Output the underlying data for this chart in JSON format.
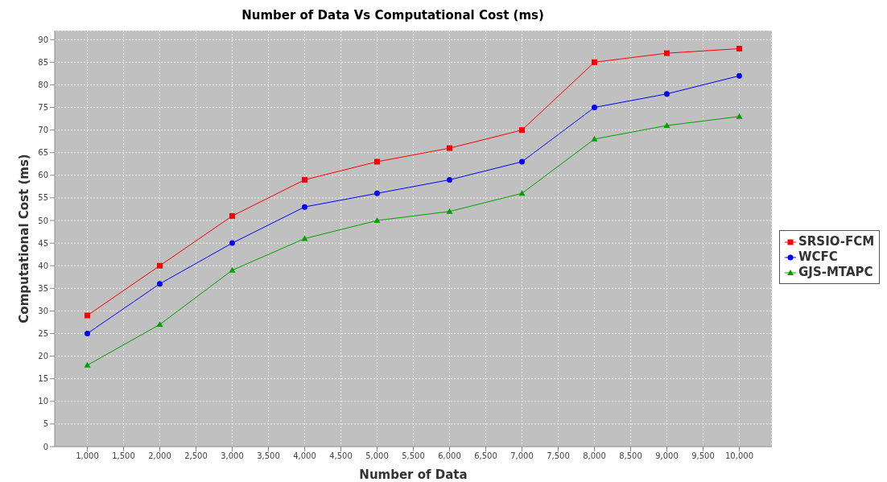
{
  "chart_data": {
    "type": "line",
    "title": "Number of Data Vs Computational Cost (ms)",
    "xlabel": "Number of Data",
    "ylabel": "Computational Cost (ms)",
    "x": [
      1000,
      2000,
      3000,
      4000,
      5000,
      6000,
      7000,
      8000,
      9000,
      10000
    ],
    "series": [
      {
        "name": "SRSIO-FCM",
        "color": "#ff0000",
        "marker": "square",
        "values": [
          29,
          40,
          51,
          59,
          63,
          66,
          70,
          85,
          87,
          88
        ]
      },
      {
        "name": "WCFC",
        "color": "#0000ff",
        "marker": "circle",
        "values": [
          25,
          36,
          45,
          53,
          56,
          59,
          63,
          75,
          78,
          82
        ]
      },
      {
        "name": "GJS-MTAPC",
        "color": "#00a000",
        "marker": "triangle",
        "values": [
          18,
          27,
          39,
          46,
          50,
          52,
          56,
          68,
          71,
          73
        ]
      }
    ],
    "xlim": [
      550,
      10450
    ],
    "xticks": [
      {
        "value": 1000,
        "label": "1,000"
      },
      {
        "value": 1500,
        "label": "1,500"
      },
      {
        "value": 2000,
        "label": "2,000"
      },
      {
        "value": 2500,
        "label": "2,500"
      },
      {
        "value": 3000,
        "label": "3,000"
      },
      {
        "value": 3500,
        "label": "3,500"
      },
      {
        "value": 4000,
        "label": "4,000"
      },
      {
        "value": 4500,
        "label": "4,500"
      },
      {
        "value": 5000,
        "label": "5,000"
      },
      {
        "value": 5500,
        "label": "5,500"
      },
      {
        "value": 6000,
        "label": "6,000"
      },
      {
        "value": 6500,
        "label": "6,500"
      },
      {
        "value": 7000,
        "label": "7,000"
      },
      {
        "value": 7500,
        "label": "7,500"
      },
      {
        "value": 8000,
        "label": "8,000"
      },
      {
        "value": 8500,
        "label": "8,500"
      },
      {
        "value": 9000,
        "label": "9,000"
      },
      {
        "value": 9500,
        "label": "9,500"
      },
      {
        "value": 10000,
        "label": "10,000"
      }
    ],
    "ylim": [
      0,
      92
    ],
    "yticks": [
      0,
      5,
      10,
      15,
      20,
      25,
      30,
      35,
      40,
      45,
      50,
      55,
      60,
      65,
      70,
      75,
      80,
      85,
      90
    ],
    "grid": true,
    "legend": "right",
    "line_style": "solid"
  }
}
